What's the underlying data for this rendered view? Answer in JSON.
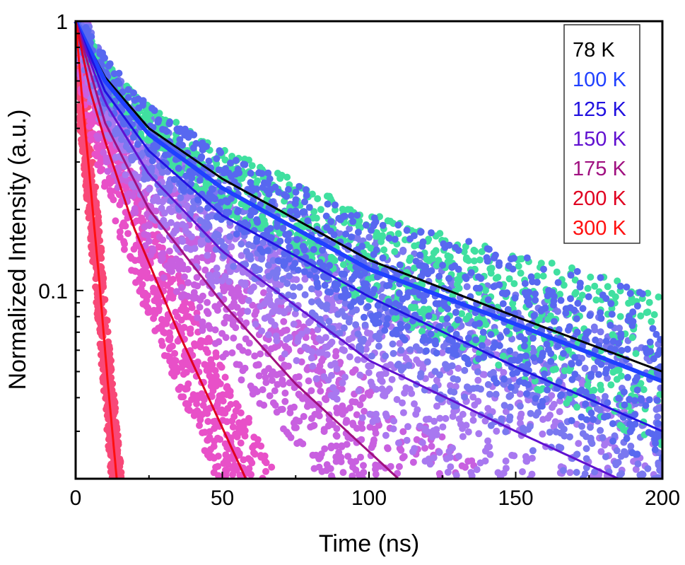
{
  "chart_data": {
    "type": "scatter",
    "xlabel": "Time (ns)",
    "ylabel": "Normalized Intensity (a.u.)",
    "xlim": [
      0,
      200
    ],
    "ylim": [
      0.02,
      1
    ],
    "yscale": "log",
    "xticks": [
      "0",
      "50",
      "100",
      "150",
      "200"
    ],
    "yticks": [
      "1",
      "0.1"
    ],
    "grid": false,
    "legend_position": "top-right",
    "series": [
      {
        "name": "78 K",
        "color": "#000000",
        "scatter_color": "#40e0a0",
        "x": [
          0,
          10,
          25,
          50,
          100,
          150,
          200
        ],
        "y": [
          1,
          0.62,
          0.4,
          0.26,
          0.13,
          0.08,
          0.05
        ]
      },
      {
        "name": "100 K",
        "color": "#2040ff",
        "scatter_color": "#5868f0",
        "x": [
          0,
          10,
          25,
          50,
          100,
          150,
          200
        ],
        "y": [
          1,
          0.6,
          0.38,
          0.24,
          0.12,
          0.075,
          0.046
        ]
      },
      {
        "name": "125 K",
        "color": "#2010e0",
        "scatter_color": "#7a78f0",
        "x": [
          0,
          10,
          25,
          50,
          100,
          150,
          200
        ],
        "y": [
          1,
          0.55,
          0.33,
          0.19,
          0.095,
          0.052,
          0.03
        ]
      },
      {
        "name": "150 K",
        "color": "#6010d0",
        "scatter_color": "#a878f0",
        "x": [
          0,
          10,
          25,
          50,
          100,
          150,
          185
        ],
        "y": [
          1,
          0.5,
          0.27,
          0.14,
          0.055,
          0.03,
          0.02
        ]
      },
      {
        "name": "175 K",
        "color": "#a01080",
        "scatter_color": "#c860e0",
        "x": [
          0,
          10,
          25,
          50,
          75,
          110
        ],
        "y": [
          1,
          0.42,
          0.2,
          0.09,
          0.045,
          0.02
        ]
      },
      {
        "name": "200 K",
        "color": "#e00020",
        "scatter_color": "#e850c8",
        "x": [
          0,
          5,
          10,
          20,
          35,
          58
        ],
        "y": [
          1,
          0.55,
          0.36,
          0.17,
          0.07,
          0.02
        ]
      },
      {
        "name": "300 K",
        "color": "#ff1010",
        "scatter_color": "#f84878",
        "x": [
          0,
          2,
          5,
          8,
          11,
          14
        ],
        "y": [
          1,
          0.55,
          0.25,
          0.11,
          0.045,
          0.02
        ]
      }
    ]
  }
}
